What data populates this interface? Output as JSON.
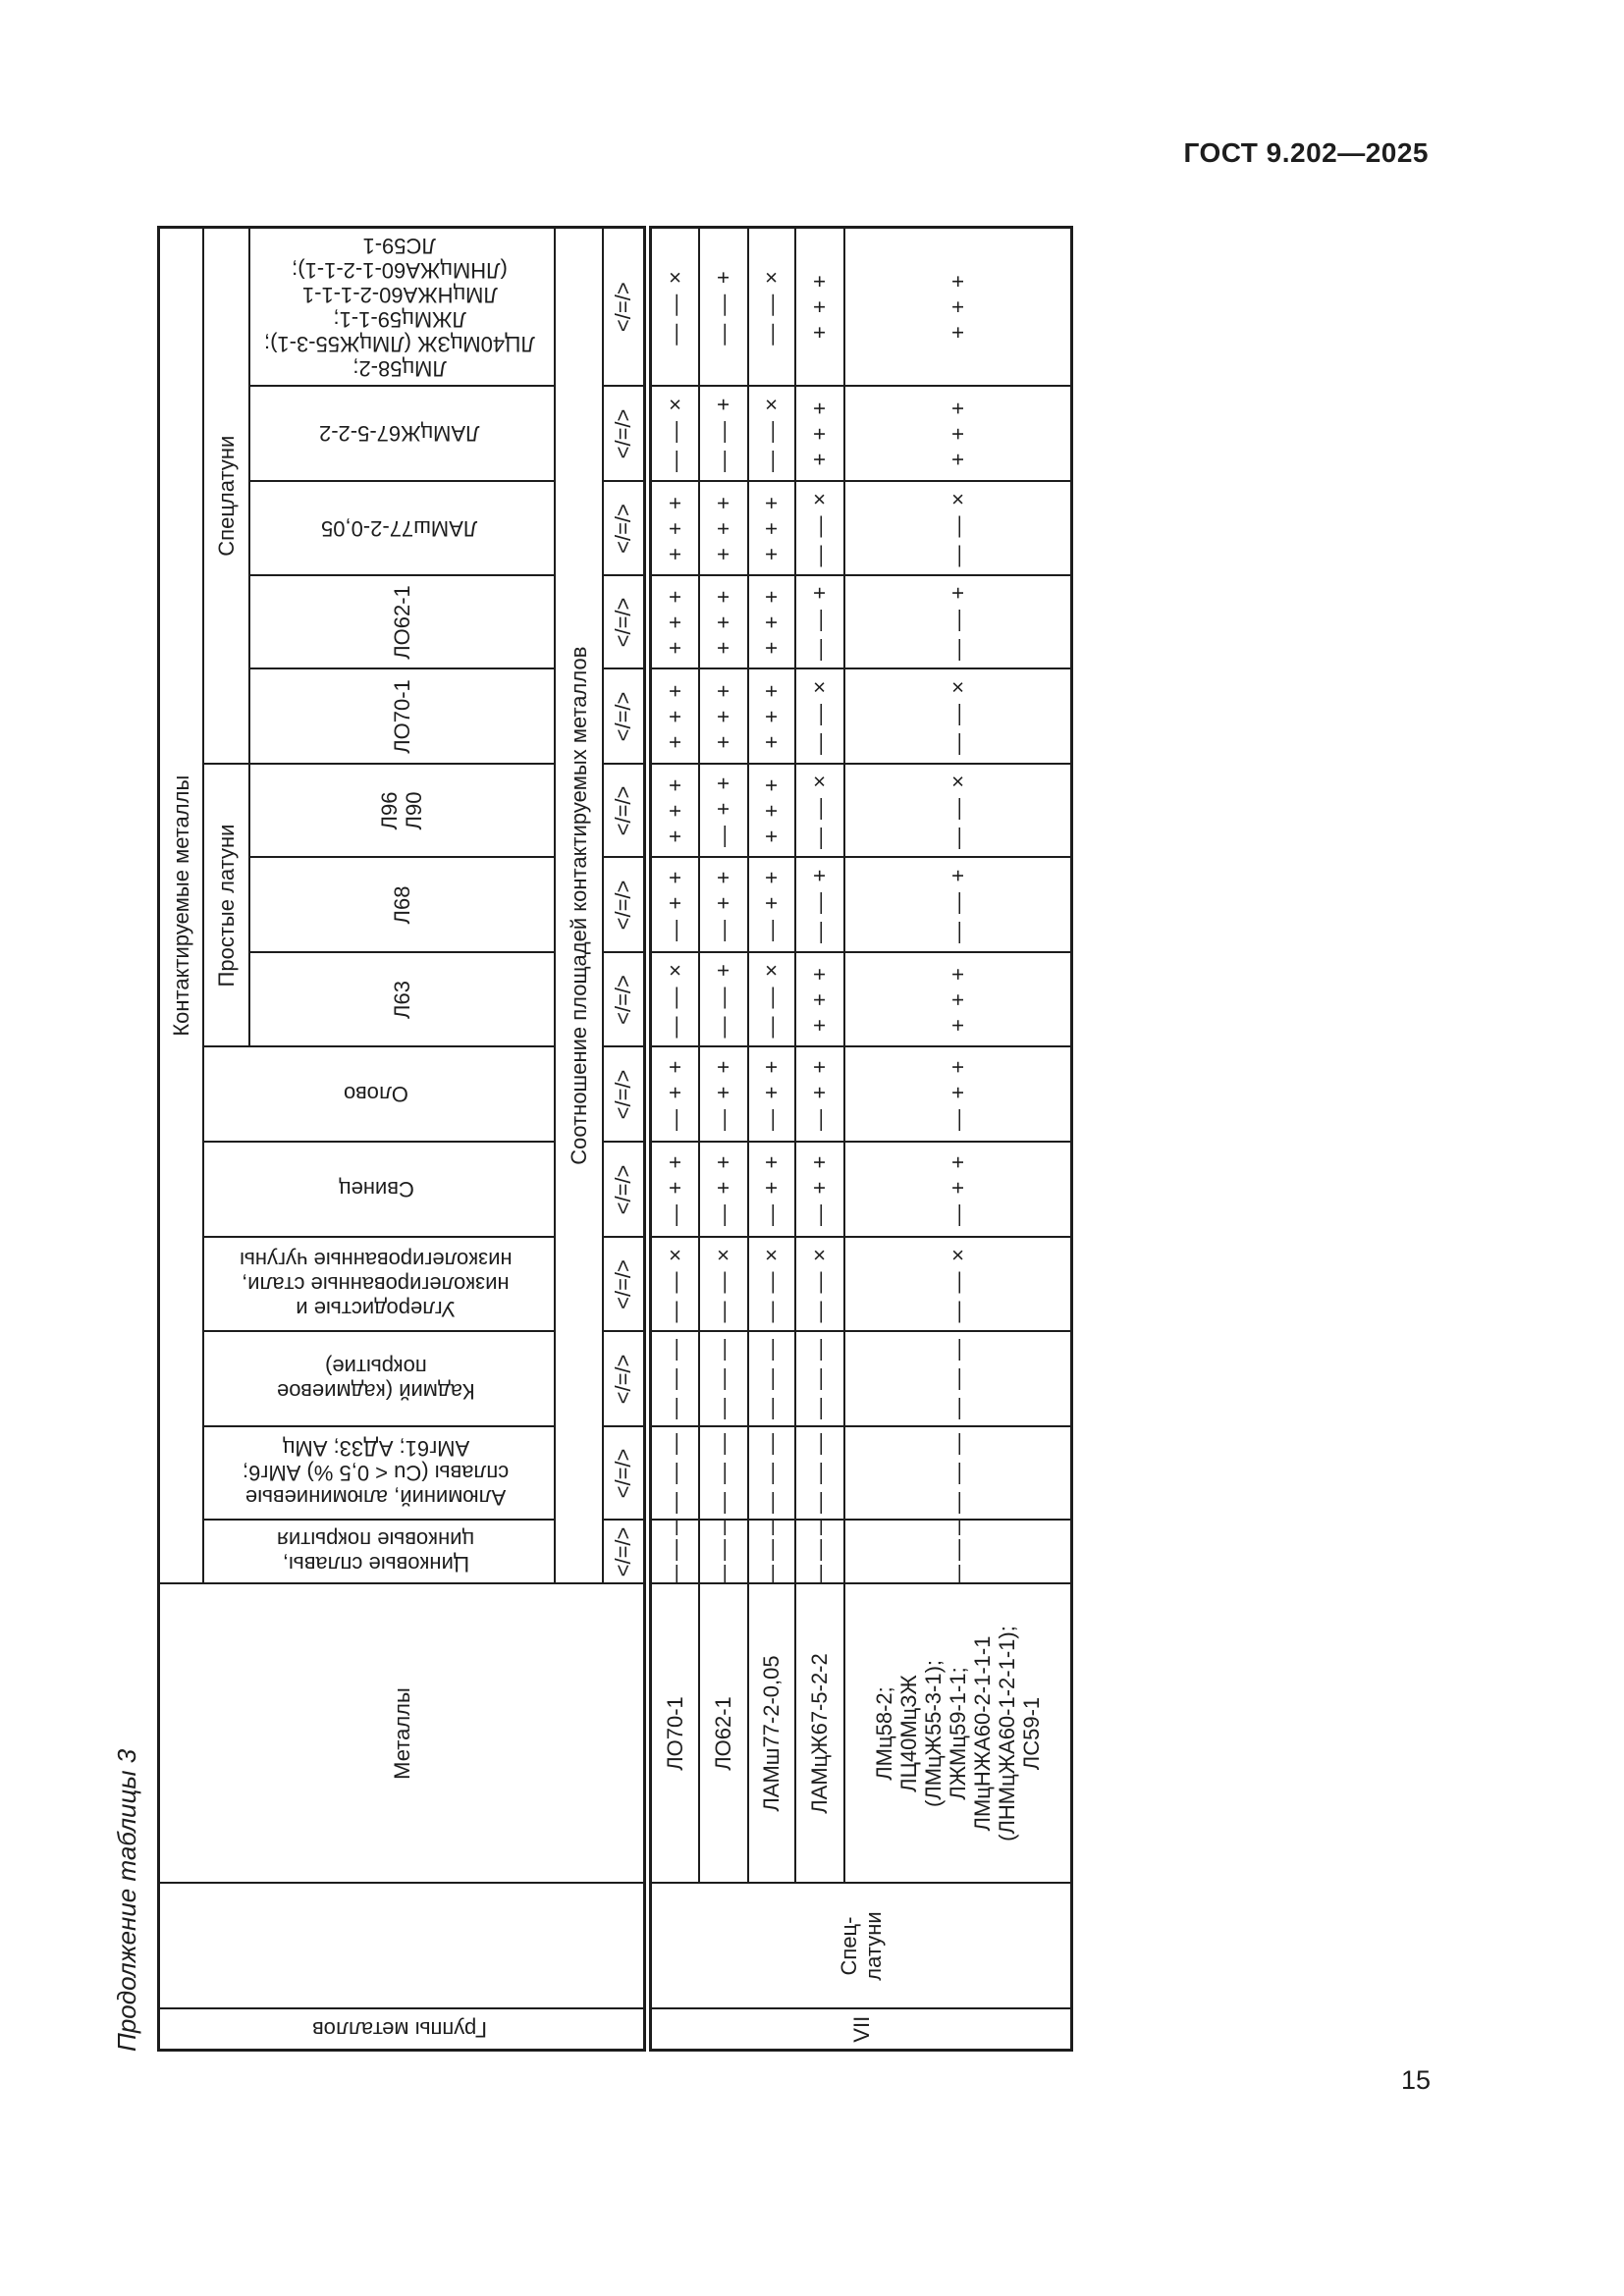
{
  "page": {
    "standard_ref": "ГОСТ 9.202—2025",
    "page_number": "15",
    "table_caption": "Продолжение таблицы 3"
  },
  "table": {
    "corner": {
      "groups_header": "Группы металлов",
      "metals_header": "Металлы",
      "contacted_header": "Контактируемые металлы",
      "ratio_header": "Соотношение площадей контактируемых металлов",
      "ratio_symbols": "</=/>"
    },
    "column_groups": [
      {
        "label": "Простые латуни",
        "span": 3
      },
      {
        "label": "Спецлатуни",
        "span": 5
      }
    ],
    "columns": [
      {
        "name_lines": [
          "Цинковые сплавы,",
          "цинковые покрытия"
        ],
        "vertical": true,
        "grouped": false
      },
      {
        "name_lines": [
          "Алюминий, алюминиевые",
          "сплавы (Cu < 0,5 %) АМг6;",
          "АМг61; АД33; АМц"
        ],
        "vertical": true,
        "grouped": false
      },
      {
        "name_lines": [
          "Кадмий (кадмиевое",
          "покрытие)"
        ],
        "vertical": true,
        "grouped": false
      },
      {
        "name_lines": [
          "Углеродистые и",
          "низколегированные стали,",
          "низколегированные чугуны"
        ],
        "vertical": true,
        "grouped": false
      },
      {
        "name_lines": [
          "Свинец"
        ],
        "vertical": true,
        "grouped": false
      },
      {
        "name_lines": [
          "Олово"
        ],
        "vertical": true,
        "grouped": false
      },
      {
        "name_lines": [
          "Л63"
        ],
        "vertical": false,
        "grouped": true
      },
      {
        "name_lines": [
          "Л68"
        ],
        "vertical": false,
        "grouped": true
      },
      {
        "name_lines": [
          "Л96",
          "Л90"
        ],
        "vertical": false,
        "grouped": true
      },
      {
        "name_lines": [
          "ЛО70-1"
        ],
        "vertical": false,
        "grouped": true
      },
      {
        "name_lines": [
          "ЛО62-1"
        ],
        "vertical": false,
        "grouped": true
      },
      {
        "name_lines": [
          "ЛАМш77-2-0,05"
        ],
        "vertical": true,
        "grouped": true
      },
      {
        "name_lines": [
          "ЛАМцЖ67-5-2-2"
        ],
        "vertical": true,
        "grouped": true
      },
      {
        "name_lines": [
          "ЛМц58-2;",
          "ЛЦ40МцЗЖ (ЛМцЖ55-3-1);",
          "ЛЖМц59-1-1;",
          "ЛМцНЖА60-2-1-1-1",
          "(ЛНМцЖА60-1-2-1-1);",
          "ЛС59-1"
        ],
        "vertical": true,
        "grouped": true
      }
    ],
    "body": {
      "group_number": "VII",
      "group_name_lines": [
        "Спец-",
        "латуни"
      ],
      "rows": [
        {
          "label_lines": [
            "ЛО70-1"
          ],
          "cells": [
            [
              "—",
              "—",
              "—"
            ],
            [
              "—",
              "—",
              "—"
            ],
            [
              "—",
              "—",
              "—"
            ],
            [
              "—",
              "—",
              "×"
            ],
            [
              "—",
              "+",
              "+"
            ],
            [
              "—",
              "+",
              "+"
            ],
            [
              "—",
              "—",
              "×"
            ],
            [
              "—",
              "+",
              "+"
            ],
            [
              "+",
              "+",
              "+"
            ],
            [
              "+",
              "+",
              "+"
            ],
            [
              "+",
              "+",
              "+"
            ],
            [
              "+",
              "+",
              "+"
            ],
            [
              "—",
              "—",
              "×"
            ],
            [
              "—",
              "—",
              "×"
            ]
          ]
        },
        {
          "label_lines": [
            "ЛО62-1"
          ],
          "cells": [
            [
              "—",
              "—",
              "—"
            ],
            [
              "—",
              "—",
              "—"
            ],
            [
              "—",
              "—",
              "—"
            ],
            [
              "—",
              "—",
              "×"
            ],
            [
              "—",
              "+",
              "+"
            ],
            [
              "—",
              "+",
              "+"
            ],
            [
              "—",
              "—",
              "+"
            ],
            [
              "—",
              "+",
              "+"
            ],
            [
              "—",
              "+",
              "+"
            ],
            [
              "+",
              "+",
              "+"
            ],
            [
              "+",
              "+",
              "+"
            ],
            [
              "+",
              "+",
              "+"
            ],
            [
              "—",
              "—",
              "+"
            ],
            [
              "—",
              "—",
              "+"
            ]
          ]
        },
        {
          "label_lines": [
            "ЛАМш77-2-0,05"
          ],
          "cells": [
            [
              "—",
              "—",
              "—"
            ],
            [
              "—",
              "—",
              "—"
            ],
            [
              "—",
              "—",
              "—"
            ],
            [
              "—",
              "—",
              "×"
            ],
            [
              "—",
              "+",
              "+"
            ],
            [
              "—",
              "+",
              "+"
            ],
            [
              "—",
              "—",
              "×"
            ],
            [
              "—",
              "+",
              "+"
            ],
            [
              "+",
              "+",
              "+"
            ],
            [
              "+",
              "+",
              "+"
            ],
            [
              "+",
              "+",
              "+"
            ],
            [
              "+",
              "+",
              "+"
            ],
            [
              "—",
              "—",
              "×"
            ],
            [
              "—",
              "—",
              "×"
            ]
          ]
        },
        {
          "label_lines": [
            "ЛАМцЖ67-5-2-2"
          ],
          "cells": [
            [
              "—",
              "—",
              "—"
            ],
            [
              "—",
              "—",
              "—"
            ],
            [
              "—",
              "—",
              "—"
            ],
            [
              "—",
              "—",
              "×"
            ],
            [
              "—",
              "+",
              "+"
            ],
            [
              "—",
              "+",
              "+"
            ],
            [
              "+",
              "+",
              "+"
            ],
            [
              "—",
              "—",
              "+"
            ],
            [
              "—",
              "—",
              "×"
            ],
            [
              "—",
              "—",
              "×"
            ],
            [
              "—",
              "—",
              "+"
            ],
            [
              "—",
              "—",
              "×"
            ],
            [
              "+",
              "+",
              "+"
            ],
            [
              "+",
              "+",
              "+"
            ]
          ]
        },
        {
          "label_lines": [
            "ЛМц58-2;",
            "ЛЦ40МцЗЖ",
            "(ЛМцЖ55-3-1);",
            "ЛЖМц59-1-1;",
            "ЛМцНЖА60-2-1-1-1",
            "(ЛНМцЖА60-1-2-1-1);",
            "ЛС59-1"
          ],
          "cells": [
            [
              "—",
              "—",
              "—"
            ],
            [
              "—",
              "—",
              "—"
            ],
            [
              "—",
              "—",
              "—"
            ],
            [
              "—",
              "—",
              "×"
            ],
            [
              "—",
              "+",
              "+"
            ],
            [
              "—",
              "+",
              "+"
            ],
            [
              "+",
              "+",
              "+"
            ],
            [
              "—",
              "—",
              "+"
            ],
            [
              "—",
              "—",
              "×"
            ],
            [
              "—",
              "—",
              "×"
            ],
            [
              "—",
              "—",
              "+"
            ],
            [
              "—",
              "—",
              "×"
            ],
            [
              "+",
              "+",
              "+"
            ],
            [
              "+",
              "+",
              "+"
            ]
          ]
        }
      ]
    }
  }
}
